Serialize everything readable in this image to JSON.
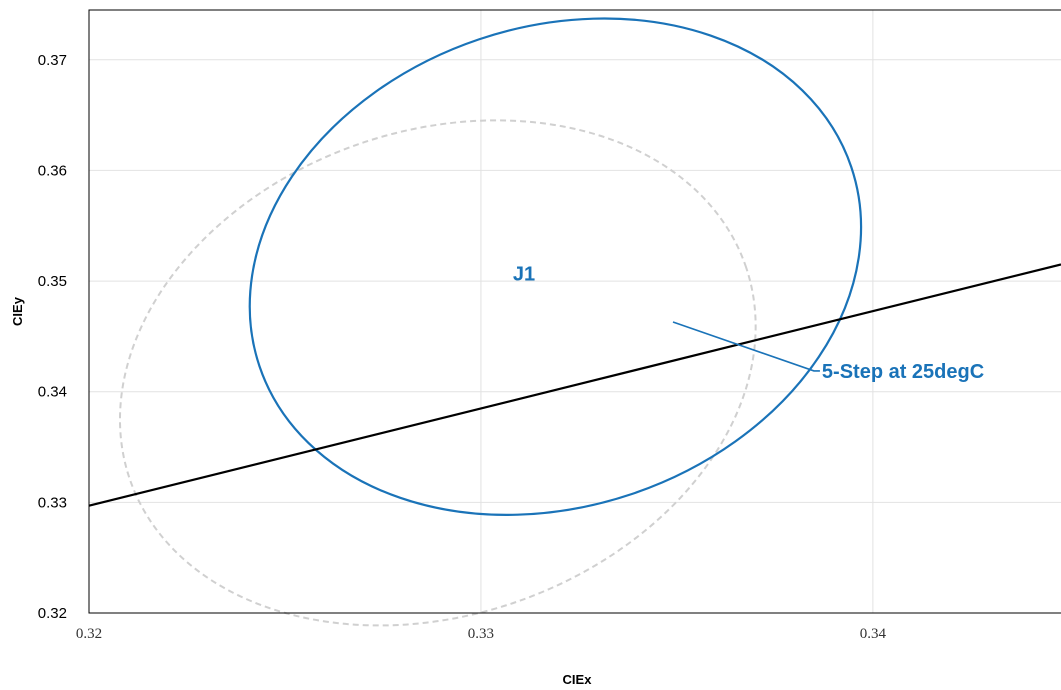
{
  "chart_data": {
    "type": "scatter",
    "title": "",
    "xlabel": "CIEx",
    "ylabel": "CIEy",
    "xlim": [
      0.32,
      0.3448
    ],
    "ylim": [
      0.32,
      0.3745
    ],
    "x_ticks": [
      "0.32",
      "0.33",
      "0.34"
    ],
    "y_ticks": [
      "0.32",
      "0.33",
      "0.34",
      "0.35",
      "0.36",
      "0.37"
    ],
    "grid": true,
    "legend": "none",
    "series": [
      {
        "name": "J1",
        "shape": "ellipse",
        "center": [
          0.3319,
          0.3513
        ],
        "vertices": [
          [
            0.3244,
            0.3423
          ],
          [
            0.3395,
            0.3603
          ],
          [
            0.3369,
            0.3638
          ],
          [
            0.3269,
            0.3388
          ]
        ],
        "color": "#1a73b8",
        "style": "solid"
      },
      {
        "name": "5-Step at 25degC",
        "shape": "ellipse",
        "center": [
          0.3289,
          0.3417
        ],
        "vertices": [
          [
            0.321,
            0.332
          ],
          [
            0.3367,
            0.3514
          ],
          [
            0.3339,
            0.3543
          ],
          [
            0.3238,
            0.3291
          ]
        ],
        "color": "#d0d0d0",
        "style": "dashed"
      },
      {
        "name": "",
        "shape": "line",
        "x": [
          0.32,
          0.3448
        ],
        "y": [
          0.3297,
          0.3515
        ],
        "color": "#000000",
        "style": "solid"
      }
    ],
    "annotations": [
      {
        "text": "J1",
        "at": [
          0.3311,
          0.3507
        ],
        "color": "#1a73b8"
      },
      {
        "text": "5-Step at 25degC",
        "at": [
          0.3387,
          0.3417
        ],
        "pointer_to": [
          0.3349,
          0.3463
        ],
        "color": "#1a73b8"
      }
    ]
  }
}
